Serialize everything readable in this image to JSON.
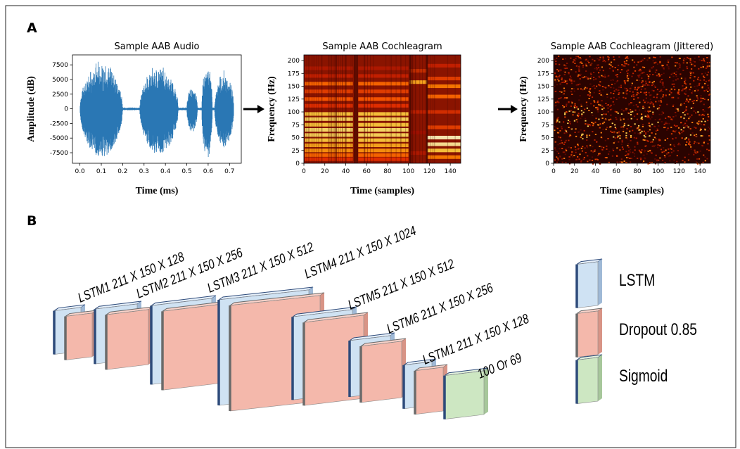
{
  "panel_a": {
    "label": "A",
    "plots": [
      {
        "title": "Sample AAB Audio",
        "xlabel": "Time (ms)",
        "ylabel": "Amplitude (dB)",
        "xlim": [
          -0.035,
          0.755
        ],
        "ylim": [
          -9300,
          9200
        ],
        "xticks": [
          {
            "value": 0,
            "label": "0.0"
          },
          {
            "value": 0.1,
            "label": "0.1"
          },
          {
            "value": 0.2,
            "label": "0.2"
          },
          {
            "value": 0.3,
            "label": "0.3"
          },
          {
            "value": 0.4,
            "label": "0.4"
          },
          {
            "value": 0.5,
            "label": "0.5"
          },
          {
            "value": 0.6,
            "label": "0.6"
          },
          {
            "value": 0.7,
            "label": "0.7"
          }
        ],
        "yticks": [
          -7500,
          -5000,
          -2500,
          0,
          2500,
          5000,
          7500
        ]
      },
      {
        "title": "Sample AAB Cochleagram",
        "xlabel": "Time (samples)",
        "ylabel": "Frequency (Hz)",
        "xlim": [
          0,
          150
        ],
        "ylim": [
          0,
          211
        ],
        "xticks": [
          0,
          20,
          40,
          60,
          80,
          100,
          120,
          140
        ],
        "yticks": [
          0,
          25,
          50,
          75,
          100,
          125,
          150,
          175,
          200
        ]
      },
      {
        "title": "Sample AAB Cochleagram (Jittered)",
        "xlabel": "Time (samples)",
        "ylabel": "Frequency (Hz)",
        "xlim": [
          0,
          150
        ],
        "ylim": [
          0,
          211
        ],
        "xticks": [
          0,
          20,
          40,
          60,
          80,
          100,
          120,
          140
        ],
        "yticks": [
          0,
          25,
          50,
          75,
          100,
          125,
          150,
          175,
          200
        ]
      }
    ]
  },
  "panel_b": {
    "label": "B",
    "layers": [
      "LSTM1 211 X 150 X 128",
      "LSTM2 211 X 150 X 256",
      "LSTM3 211 X 150 X 512",
      "LSTM4 211 X 150 X 1024",
      "LSTM5 211 X 150 X 512",
      "LSTM6 211 X 150 X 256",
      "LSTM1 211 X 150 X 128"
    ],
    "output": "100  Or 69",
    "legend": [
      "LSTM",
      "Dropout 0.85",
      "Sigmoid"
    ]
  }
}
